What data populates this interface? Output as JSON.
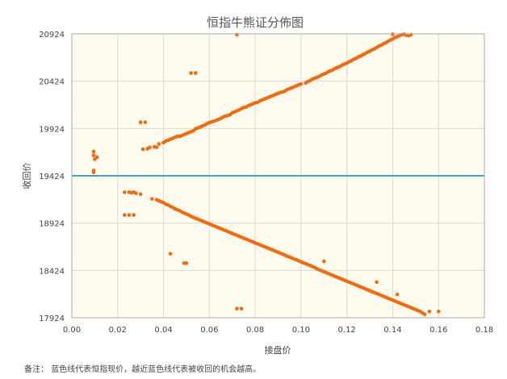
{
  "chart_data": {
    "type": "scatter",
    "title": "恒指牛熊证分佈图",
    "xlabel": "接盘价",
    "ylabel": "收回价",
    "xlim": [
      0,
      0.18
    ],
    "ylim": [
      17924,
      20924
    ],
    "x_ticks": [
      "0.00",
      "0.02",
      "0.04",
      "0.06",
      "0.08",
      "0.10",
      "0.12",
      "0.14",
      "0.16",
      "0.18"
    ],
    "y_ticks": [
      "17924",
      "18424",
      "18924",
      "19424",
      "19924",
      "20424",
      "20924"
    ],
    "grid": true,
    "reference_line": {
      "y": 19424,
      "color": "#3aa8c4"
    },
    "point_color": "#f06a0e",
    "plot_background": "#fffbee",
    "series": [
      {
        "points": [
          [
            0.0095,
            19680
          ],
          [
            0.0095,
            19640
          ],
          [
            0.01,
            19600
          ],
          [
            0.0095,
            19480
          ],
          [
            0.0095,
            19460
          ],
          [
            0.011,
            19620
          ],
          [
            0.03,
            19990
          ],
          [
            0.032,
            19990
          ],
          [
            0.031,
            19705
          ],
          [
            0.033,
            19710
          ],
          [
            0.034,
            19725
          ],
          [
            0.036,
            19730
          ],
          [
            0.037,
            19725
          ],
          [
            0.038,
            19760
          ],
          [
            0.04,
            19775
          ],
          [
            0.041,
            19790
          ],
          [
            0.042,
            19800
          ],
          [
            0.043,
            19810
          ],
          [
            0.044,
            19820
          ],
          [
            0.045,
            19830
          ],
          [
            0.046,
            19840
          ],
          [
            0.047,
            19840
          ],
          [
            0.048,
            19850
          ],
          [
            0.049,
            19860
          ],
          [
            0.05,
            19870
          ],
          [
            0.051,
            19880
          ],
          [
            0.052,
            19890
          ],
          [
            0.053,
            19900
          ],
          [
            0.054,
            19920
          ],
          [
            0.055,
            19930
          ],
          [
            0.056,
            19940
          ],
          [
            0.057,
            19950
          ],
          [
            0.058,
            19960
          ],
          [
            0.059,
            19975
          ],
          [
            0.06,
            19985
          ],
          [
            0.061,
            19995
          ],
          [
            0.062,
            20000
          ],
          [
            0.063,
            20010
          ],
          [
            0.064,
            20020
          ],
          [
            0.065,
            20030
          ],
          [
            0.066,
            20045
          ],
          [
            0.067,
            20055
          ],
          [
            0.068,
            20060
          ],
          [
            0.069,
            20070
          ],
          [
            0.07,
            20090
          ],
          [
            0.071,
            20100
          ],
          [
            0.072,
            20110
          ],
          [
            0.073,
            20120
          ],
          [
            0.074,
            20135
          ],
          [
            0.075,
            20145
          ],
          [
            0.076,
            20150
          ],
          [
            0.077,
            20165
          ],
          [
            0.078,
            20175
          ],
          [
            0.079,
            20185
          ],
          [
            0.08,
            20195
          ],
          [
            0.081,
            20200
          ],
          [
            0.082,
            20215
          ],
          [
            0.083,
            20225
          ],
          [
            0.084,
            20235
          ],
          [
            0.085,
            20245
          ],
          [
            0.086,
            20255
          ],
          [
            0.087,
            20265
          ],
          [
            0.088,
            20275
          ],
          [
            0.089,
            20285
          ],
          [
            0.09,
            20295
          ],
          [
            0.091,
            20305
          ],
          [
            0.092,
            20310
          ],
          [
            0.093,
            20320
          ],
          [
            0.094,
            20335
          ],
          [
            0.095,
            20345
          ],
          [
            0.096,
            20355
          ],
          [
            0.097,
            20365
          ],
          [
            0.098,
            20375
          ],
          [
            0.099,
            20385
          ],
          [
            0.1,
            20395
          ],
          [
            0.102,
            20405
          ],
          [
            0.103,
            20420
          ],
          [
            0.104,
            20430
          ],
          [
            0.105,
            20445
          ],
          [
            0.106,
            20455
          ],
          [
            0.107,
            20465
          ],
          [
            0.108,
            20475
          ],
          [
            0.109,
            20490
          ],
          [
            0.11,
            20500
          ],
          [
            0.111,
            20510
          ],
          [
            0.112,
            20525
          ],
          [
            0.113,
            20535
          ],
          [
            0.114,
            20545
          ],
          [
            0.115,
            20560
          ],
          [
            0.116,
            20570
          ],
          [
            0.117,
            20580
          ],
          [
            0.118,
            20595
          ],
          [
            0.119,
            20605
          ],
          [
            0.12,
            20615
          ],
          [
            0.121,
            20630
          ],
          [
            0.122,
            20640
          ],
          [
            0.123,
            20655
          ],
          [
            0.124,
            20665
          ],
          [
            0.125,
            20680
          ],
          [
            0.126,
            20690
          ],
          [
            0.127,
            20705
          ],
          [
            0.128,
            20715
          ],
          [
            0.129,
            20730
          ],
          [
            0.13,
            20740
          ],
          [
            0.131,
            20755
          ],
          [
            0.132,
            20765
          ],
          [
            0.133,
            20780
          ],
          [
            0.134,
            20795
          ],
          [
            0.135,
            20805
          ],
          [
            0.136,
            20820
          ],
          [
            0.137,
            20830
          ],
          [
            0.138,
            20845
          ],
          [
            0.139,
            20860
          ],
          [
            0.14,
            20870
          ],
          [
            0.141,
            20885
          ],
          [
            0.142,
            20895
          ],
          [
            0.143,
            20905
          ],
          [
            0.144,
            20915
          ],
          [
            0.145,
            20920
          ],
          [
            0.146,
            20910
          ],
          [
            0.147,
            20905
          ],
          [
            0.148,
            20915
          ],
          [
            0.14,
            20920
          ],
          [
            0.052,
            20510
          ],
          [
            0.054,
            20510
          ],
          [
            0.072,
            20915
          ]
        ]
      },
      {
        "points": [
          [
            0.023,
            19250
          ],
          [
            0.025,
            19250
          ],
          [
            0.026,
            19245
          ],
          [
            0.027,
            19250
          ],
          [
            0.028,
            19240
          ],
          [
            0.03,
            19230
          ],
          [
            0.023,
            19010
          ],
          [
            0.025,
            19010
          ],
          [
            0.027,
            19010
          ],
          [
            0.035,
            19180
          ],
          [
            0.037,
            19170
          ],
          [
            0.038,
            19160
          ],
          [
            0.039,
            19150
          ],
          [
            0.04,
            19140
          ],
          [
            0.041,
            19125
          ],
          [
            0.042,
            19115
          ],
          [
            0.043,
            19100
          ],
          [
            0.044,
            19090
          ],
          [
            0.045,
            19075
          ],
          [
            0.046,
            19065
          ],
          [
            0.047,
            19055
          ],
          [
            0.048,
            19040
          ],
          [
            0.049,
            19030
          ],
          [
            0.05,
            19020
          ],
          [
            0.051,
            19010
          ],
          [
            0.052,
            18995
          ],
          [
            0.053,
            18985
          ],
          [
            0.054,
            18975
          ],
          [
            0.055,
            18965
          ],
          [
            0.056,
            18955
          ],
          [
            0.057,
            18945
          ],
          [
            0.058,
            18935
          ],
          [
            0.059,
            18925
          ],
          [
            0.06,
            18915
          ],
          [
            0.061,
            18905
          ],
          [
            0.062,
            18895
          ],
          [
            0.063,
            18885
          ],
          [
            0.064,
            18875
          ],
          [
            0.065,
            18865
          ],
          [
            0.066,
            18855
          ],
          [
            0.067,
            18845
          ],
          [
            0.068,
            18835
          ],
          [
            0.069,
            18825
          ],
          [
            0.07,
            18815
          ],
          [
            0.071,
            18805
          ],
          [
            0.072,
            18795
          ],
          [
            0.073,
            18785
          ],
          [
            0.074,
            18775
          ],
          [
            0.075,
            18765
          ],
          [
            0.076,
            18755
          ],
          [
            0.077,
            18745
          ],
          [
            0.078,
            18735
          ],
          [
            0.079,
            18725
          ],
          [
            0.08,
            18715
          ],
          [
            0.081,
            18705
          ],
          [
            0.082,
            18695
          ],
          [
            0.083,
            18685
          ],
          [
            0.084,
            18675
          ],
          [
            0.085,
            18665
          ],
          [
            0.086,
            18655
          ],
          [
            0.087,
            18645
          ],
          [
            0.088,
            18635
          ],
          [
            0.089,
            18625
          ],
          [
            0.09,
            18615
          ],
          [
            0.091,
            18605
          ],
          [
            0.092,
            18595
          ],
          [
            0.093,
            18585
          ],
          [
            0.094,
            18575
          ],
          [
            0.095,
            18565
          ],
          [
            0.096,
            18555
          ],
          [
            0.097,
            18545
          ],
          [
            0.098,
            18535
          ],
          [
            0.099,
            18525
          ],
          [
            0.1,
            18515
          ],
          [
            0.101,
            18505
          ],
          [
            0.102,
            18495
          ],
          [
            0.103,
            18485
          ],
          [
            0.104,
            18475
          ],
          [
            0.105,
            18465
          ],
          [
            0.106,
            18455
          ],
          [
            0.107,
            18440
          ],
          [
            0.108,
            18430
          ],
          [
            0.109,
            18420
          ],
          [
            0.11,
            18410
          ],
          [
            0.111,
            18400
          ],
          [
            0.112,
            18390
          ],
          [
            0.113,
            18380
          ],
          [
            0.114,
            18370
          ],
          [
            0.115,
            18360
          ],
          [
            0.116,
            18350
          ],
          [
            0.117,
            18340
          ],
          [
            0.118,
            18330
          ],
          [
            0.119,
            18320
          ],
          [
            0.12,
            18310
          ],
          [
            0.121,
            18300
          ],
          [
            0.122,
            18290
          ],
          [
            0.123,
            18280
          ],
          [
            0.124,
            18270
          ],
          [
            0.125,
            18260
          ],
          [
            0.126,
            18250
          ],
          [
            0.127,
            18240
          ],
          [
            0.128,
            18230
          ],
          [
            0.129,
            18220
          ],
          [
            0.13,
            18210
          ],
          [
            0.131,
            18200
          ],
          [
            0.132,
            18190
          ],
          [
            0.133,
            18180
          ],
          [
            0.134,
            18170
          ],
          [
            0.135,
            18160
          ],
          [
            0.136,
            18150
          ],
          [
            0.137,
            18140
          ],
          [
            0.138,
            18130
          ],
          [
            0.139,
            18120
          ],
          [
            0.14,
            18110
          ],
          [
            0.141,
            18100
          ],
          [
            0.142,
            18090
          ],
          [
            0.143,
            18080
          ],
          [
            0.144,
            18070
          ],
          [
            0.145,
            18060
          ],
          [
            0.146,
            18050
          ],
          [
            0.147,
            18040
          ],
          [
            0.148,
            18030
          ],
          [
            0.149,
            18020
          ],
          [
            0.15,
            18010
          ],
          [
            0.151,
            18000
          ],
          [
            0.152,
            17990
          ],
          [
            0.153,
            17975
          ],
          [
            0.154,
            17960
          ],
          [
            0.156,
            17990
          ],
          [
            0.16,
            17990
          ],
          [
            0.142,
            18170
          ],
          [
            0.133,
            18300
          ],
          [
            0.11,
            18520
          ],
          [
            0.043,
            18600
          ],
          [
            0.049,
            18500
          ],
          [
            0.05,
            18500
          ],
          [
            0.072,
            18020
          ],
          [
            0.074,
            18020
          ]
        ]
      }
    ]
  },
  "note": {
    "label": "备注：",
    "text": "蓝色线代表恒指现价，越近蓝色线代表被收回的机会越高。"
  }
}
